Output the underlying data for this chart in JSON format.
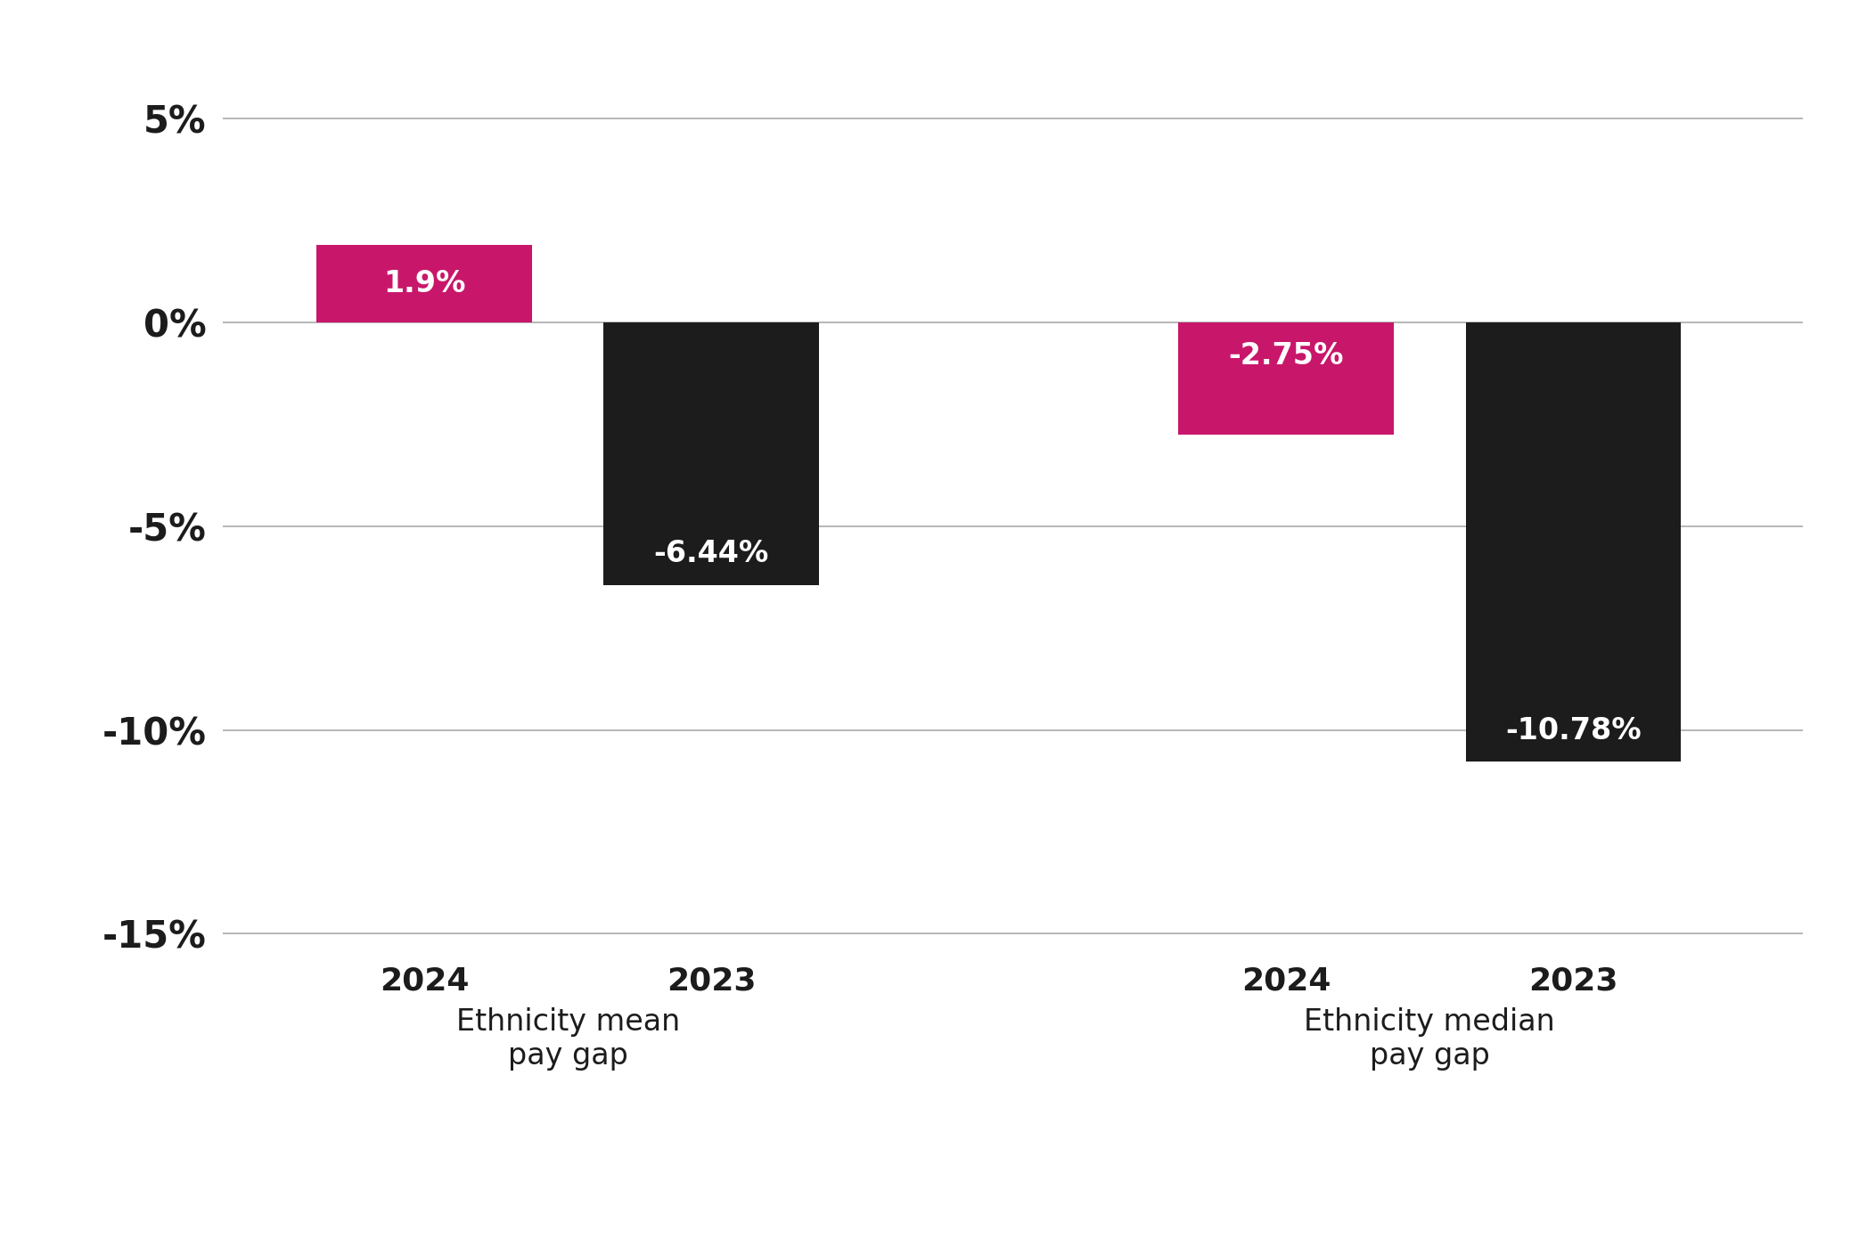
{
  "bars": [
    {
      "x": 1,
      "value": 1.9,
      "color": "#c8176a",
      "label": "1.9%",
      "year": "2024",
      "group": "mean"
    },
    {
      "x": 2,
      "value": -6.44,
      "color": "#1c1c1c",
      "label": "-6.44%",
      "year": "2023",
      "group": "mean"
    },
    {
      "x": 4,
      "value": -2.75,
      "color": "#c8176a",
      "label": "-2.75%",
      "year": "2024",
      "group": "median"
    },
    {
      "x": 5,
      "value": -10.78,
      "color": "#1c1c1c",
      "label": "-10.78%",
      "year": "2023",
      "group": "median"
    }
  ],
  "group_labels": [
    {
      "x": 1.5,
      "line1": "Ethnicity mean",
      "line2": "pay gap"
    },
    {
      "x": 4.5,
      "line1": "Ethnicity median",
      "line2": "pay gap"
    }
  ],
  "year_labels": [
    {
      "x": 1,
      "year": "2024"
    },
    {
      "x": 2,
      "year": "2023"
    },
    {
      "x": 4,
      "year": "2024"
    },
    {
      "x": 5,
      "year": "2023"
    }
  ],
  "ylim": [
    -17,
    7
  ],
  "yticks": [
    5,
    0,
    -5,
    -10,
    -15
  ],
  "ytick_labels": [
    "5%",
    "0%",
    "-5%",
    "-10%",
    "-15%"
  ],
  "bar_width": 0.75,
  "background_color": "#ffffff",
  "grid_color": "#aaaaaa",
  "label_fontsize": 24,
  "tick_fontsize": 30,
  "year_fontsize": 26,
  "group_fontsize": 24
}
